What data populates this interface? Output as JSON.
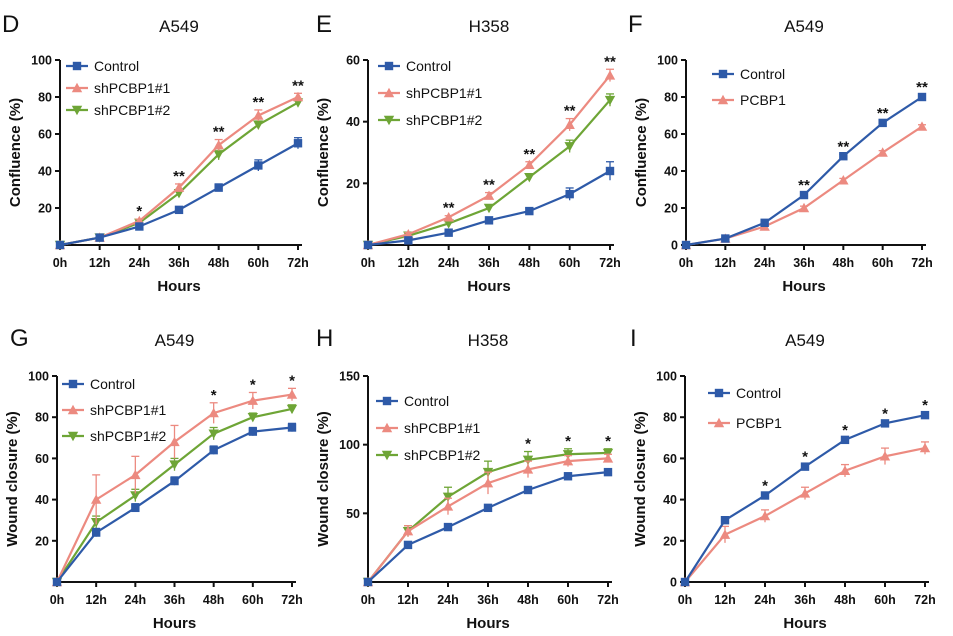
{
  "colors": {
    "control": "#2e5aa8",
    "pink": "#ec8a80",
    "green": "#6ea536",
    "axis": "#111111"
  },
  "chart_data": [
    {
      "letter": "D",
      "title": "A549",
      "type": "line",
      "xlabel": "Hours",
      "ylabel": "Confluence (%)",
      "categories": [
        "0h",
        "12h",
        "24h",
        "36h",
        "48h",
        "60h",
        "72h"
      ],
      "ylim": [
        0,
        100
      ],
      "yticks": [
        20,
        40,
        60,
        80,
        100
      ],
      "series": [
        {
          "name": "Control",
          "color": "control",
          "marker": "square",
          "values": [
            0,
            4,
            10,
            19,
            31,
            43,
            55
          ],
          "err": [
            0,
            1,
            1,
            1,
            2,
            3,
            3
          ]
        },
        {
          "name": "shPCBP1#1",
          "color": "pink",
          "marker": "triangle-up",
          "values": [
            0,
            4,
            13,
            31,
            54,
            70,
            80
          ],
          "err": [
            0,
            1,
            1,
            2,
            3,
            3,
            2
          ]
        },
        {
          "name": "shPCBP1#2",
          "color": "green",
          "marker": "triangle-down",
          "values": [
            0,
            4,
            12,
            28,
            49,
            65,
            77
          ],
          "err": [
            0,
            1,
            1,
            2,
            3,
            2,
            2
          ]
        }
      ],
      "sig": [
        "",
        "",
        "*",
        "**",
        "**",
        "**",
        "**"
      ]
    },
    {
      "letter": "E",
      "title": "H358",
      "type": "line",
      "xlabel": "Hours",
      "ylabel": "Confluence (%)",
      "categories": [
        "0h",
        "12h",
        "24h",
        "36h",
        "48h",
        "60h",
        "72h"
      ],
      "ylim": [
        0,
        60
      ],
      "yticks": [
        20,
        40,
        60
      ],
      "series": [
        {
          "name": "Control",
          "color": "control",
          "marker": "square",
          "values": [
            0,
            1.5,
            4,
            8,
            11,
            16.5,
            24
          ],
          "err": [
            0,
            0.5,
            0.5,
            1,
            1,
            2,
            3
          ]
        },
        {
          "name": "shPCBP1#1",
          "color": "pink",
          "marker": "triangle-up",
          "values": [
            0,
            3.5,
            9,
            16,
            26,
            39,
            55
          ],
          "err": [
            0,
            0.5,
            0.5,
            1,
            1,
            2,
            2
          ]
        },
        {
          "name": "shPCBP1#2",
          "color": "green",
          "marker": "triangle-down",
          "values": [
            0,
            3,
            7,
            12,
            22,
            32,
            47
          ],
          "err": [
            0,
            0.5,
            0.5,
            1,
            1,
            2,
            2
          ]
        }
      ],
      "sig": [
        "",
        "",
        "**",
        "**",
        "**",
        "**",
        "**"
      ]
    },
    {
      "letter": "F",
      "title": "A549",
      "type": "line",
      "xlabel": "Hours",
      "ylabel": "Confluence (%)",
      "categories": [
        "0h",
        "12h",
        "24h",
        "36h",
        "48h",
        "60h",
        "72h"
      ],
      "ylim": [
        0,
        100
      ],
      "yticks": [
        0,
        20,
        40,
        60,
        80,
        100
      ],
      "series": [
        {
          "name": "Control",
          "color": "control",
          "marker": "square",
          "values": [
            0,
            3.5,
            12,
            27,
            48,
            66,
            80
          ],
          "err": [
            0,
            0.5,
            1,
            1,
            1,
            1,
            1
          ]
        },
        {
          "name": "PCBP1",
          "color": "pink",
          "marker": "triangle-up",
          "values": [
            0,
            3.5,
            10,
            20,
            35,
            50,
            64
          ],
          "err": [
            0,
            0.5,
            0.5,
            1,
            1,
            1,
            1
          ]
        }
      ],
      "sig": [
        "",
        "",
        "",
        "**",
        "**",
        "**",
        "**"
      ]
    },
    {
      "letter": "G",
      "title": "A549",
      "type": "line",
      "xlabel": "Hours",
      "ylabel": "Wound closure (%)",
      "categories": [
        "0h",
        "12h",
        "24h",
        "36h",
        "48h",
        "60h",
        "72h"
      ],
      "ylim": [
        0,
        100
      ],
      "yticks": [
        20,
        40,
        60,
        80,
        100
      ],
      "series": [
        {
          "name": "Control",
          "color": "control",
          "marker": "square",
          "values": [
            0,
            24,
            36,
            49,
            64,
            73,
            75
          ],
          "err": [
            0,
            2,
            2,
            2,
            2,
            2,
            2
          ]
        },
        {
          "name": "shPCBP1#1",
          "color": "pink",
          "marker": "triangle-up",
          "values": [
            0,
            40,
            52,
            68,
            82,
            88,
            91
          ],
          "err": [
            0,
            12,
            9,
            8,
            5,
            4,
            3
          ]
        },
        {
          "name": "shPCBP1#2",
          "color": "green",
          "marker": "triangle-down",
          "values": [
            0,
            29,
            42,
            57,
            72,
            80,
            84
          ],
          "err": [
            0,
            3,
            3,
            3,
            3,
            2,
            2
          ]
        }
      ],
      "sig": [
        "",
        "",
        "",
        "",
        "*",
        "*",
        "*"
      ]
    },
    {
      "letter": "H",
      "title": "H358",
      "type": "line",
      "xlabel": "Hours",
      "ylabel": "Wound closure (%)",
      "categories": [
        "0h",
        "12h",
        "24h",
        "36h",
        "48h",
        "60h",
        "72h"
      ],
      "ylim": [
        0,
        150
      ],
      "yticks": [
        50,
        100,
        150
      ],
      "series": [
        {
          "name": "Control",
          "color": "control",
          "marker": "square",
          "values": [
            0,
            27,
            40,
            54,
            67,
            77,
            80
          ],
          "err": [
            0,
            2,
            2,
            2,
            2,
            2,
            2
          ]
        },
        {
          "name": "shPCBP1#1",
          "color": "pink",
          "marker": "triangle-up",
          "values": [
            0,
            37,
            55,
            72,
            82,
            88,
            90
          ],
          "err": [
            0,
            4,
            6,
            8,
            6,
            4,
            3
          ]
        },
        {
          "name": "shPCBP1#2",
          "color": "green",
          "marker": "triangle-down",
          "values": [
            0,
            37,
            62,
            80,
            89,
            93,
            94
          ],
          "err": [
            0,
            4,
            7,
            8,
            6,
            4,
            3
          ]
        }
      ],
      "sig": [
        "",
        "",
        "",
        "",
        "*",
        "*",
        "*"
      ]
    },
    {
      "letter": "I",
      "title": "A549",
      "type": "line",
      "xlabel": "Hours",
      "ylabel": "Wound closure (%)",
      "categories": [
        "0h",
        "12h",
        "24h",
        "36h",
        "48h",
        "60h",
        "72h"
      ],
      "ylim": [
        0,
        100
      ],
      "yticks": [
        0,
        20,
        40,
        60,
        80,
        100
      ],
      "series": [
        {
          "name": "Control",
          "color": "control",
          "marker": "square",
          "values": [
            0,
            30,
            42,
            56,
            69,
            77,
            81
          ],
          "err": [
            0,
            1,
            1,
            1,
            1,
            1,
            1
          ]
        },
        {
          "name": "PCBP1",
          "color": "pink",
          "marker": "triangle-up",
          "values": [
            0,
            23,
            32,
            43,
            54,
            61,
            65
          ],
          "err": [
            0,
            4,
            3,
            3,
            3,
            4,
            3
          ]
        }
      ],
      "sig": [
        "",
        "",
        "*",
        "*",
        "*",
        "*",
        "*"
      ]
    }
  ]
}
